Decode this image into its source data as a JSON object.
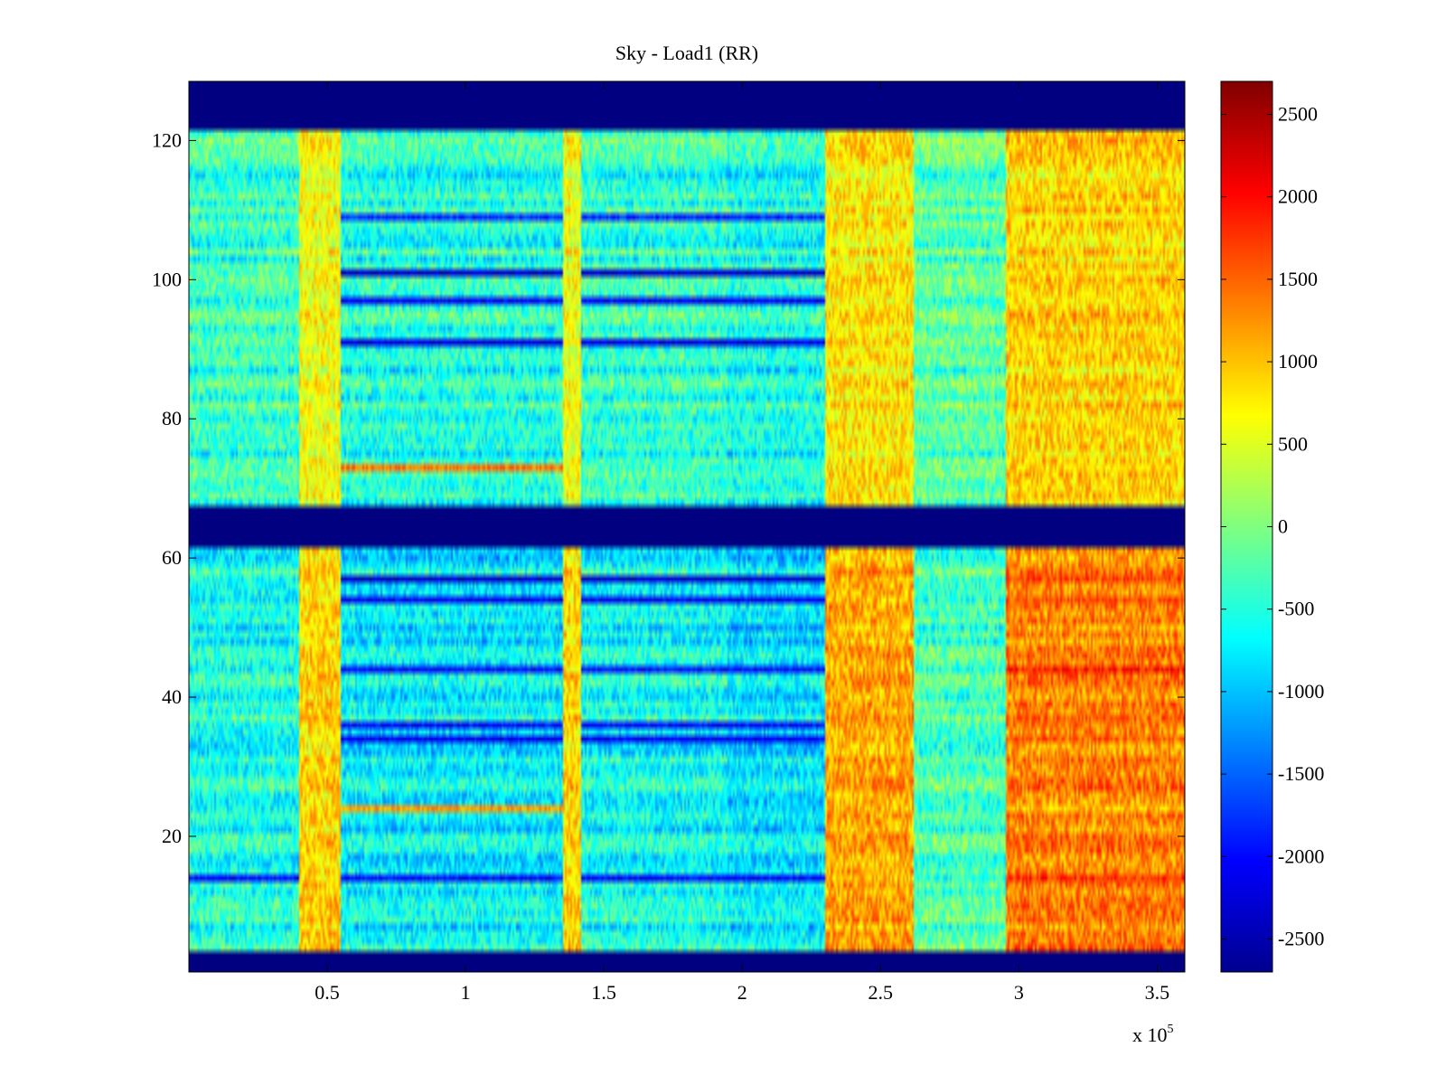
{
  "chart_data": {
    "type": "heatmap",
    "title": "Sky - Load1 (RR)",
    "xlabel": "",
    "ylabel": "",
    "x_multiplier_label": "x 10",
    "x_multiplier_exponent": "5",
    "xlim": [
      0,
      3.6
    ],
    "ylim": [
      0.5,
      128.5
    ],
    "x_ticks": [
      0.5,
      1,
      1.5,
      2,
      2.5,
      3,
      3.5
    ],
    "x_tick_labels": [
      "0.5",
      "1",
      "1.5",
      "2",
      "2.5",
      "3",
      "3.5"
    ],
    "y_ticks": [
      20,
      40,
      60,
      80,
      100,
      120
    ],
    "y_tick_labels": [
      "20",
      "40",
      "60",
      "80",
      "100",
      "120"
    ],
    "colormap": "jet",
    "clim": [
      -2700,
      2700
    ],
    "colorbar_ticks": [
      2500,
      2000,
      1500,
      1000,
      500,
      0,
      -500,
      -1000,
      -1500,
      -2000,
      -2500
    ],
    "colorbar_tick_labels": [
      "2500",
      "2000",
      "1500",
      "1000",
      "500",
      "0",
      "-500",
      "-1000",
      "-1500",
      "-2000",
      "-2500"
    ],
    "blank_channel_ranges": [
      [
        1,
        3
      ],
      [
        62,
        67
      ],
      [
        122,
        128
      ]
    ],
    "blank_value": -2700,
    "x_segments": [
      {
        "x_range": [
          0,
          0.4
        ],
        "mean": -450
      },
      {
        "x_range": [
          0.4,
          0.55
        ],
        "mean": 700
      },
      {
        "x_range": [
          0.55,
          1.35
        ],
        "mean": -600
      },
      {
        "x_range": [
          1.35,
          1.42
        ],
        "mean": 700
      },
      {
        "x_range": [
          1.42,
          1.95
        ],
        "mean": -500
      },
      {
        "x_range": [
          1.95,
          2.3
        ],
        "mean": -650
      },
      {
        "x_range": [
          2.3,
          2.62
        ],
        "mean": 900
      },
      {
        "x_range": [
          2.62,
          2.95
        ],
        "mean": -250
      },
      {
        "x_range": [
          2.95,
          3.6
        ],
        "mean": 1050
      }
    ],
    "strong_rows": [
      {
        "channel": 14,
        "value_low_x": -2000,
        "value_high_x": 1800
      },
      {
        "channel": 24,
        "value_low_x": 1200,
        "value_high_x": 1000
      },
      {
        "channel": 34,
        "value_low_x": -2100,
        "value_high_x": 1500
      },
      {
        "channel": 36,
        "value_low_x": -2000,
        "value_high_x": 1400
      },
      {
        "channel": 44,
        "value_low_x": -2000,
        "value_high_x": 1900
      },
      {
        "channel": 54,
        "value_low_x": -2100,
        "value_high_x": 1600
      },
      {
        "channel": 57,
        "value_low_x": -2300,
        "value_high_x": 1700
      },
      {
        "channel": 73,
        "value_low_x": 1400,
        "value_high_x": 900
      },
      {
        "channel": 91,
        "value_low_x": -2200,
        "value_high_x": 900
      },
      {
        "channel": 97,
        "value_low_x": -2100,
        "value_high_x": 800
      },
      {
        "channel": 101,
        "value_low_x": -2300,
        "value_high_x": 800
      },
      {
        "channel": 109,
        "value_low_x": -1800,
        "value_high_x": 700
      }
    ]
  }
}
